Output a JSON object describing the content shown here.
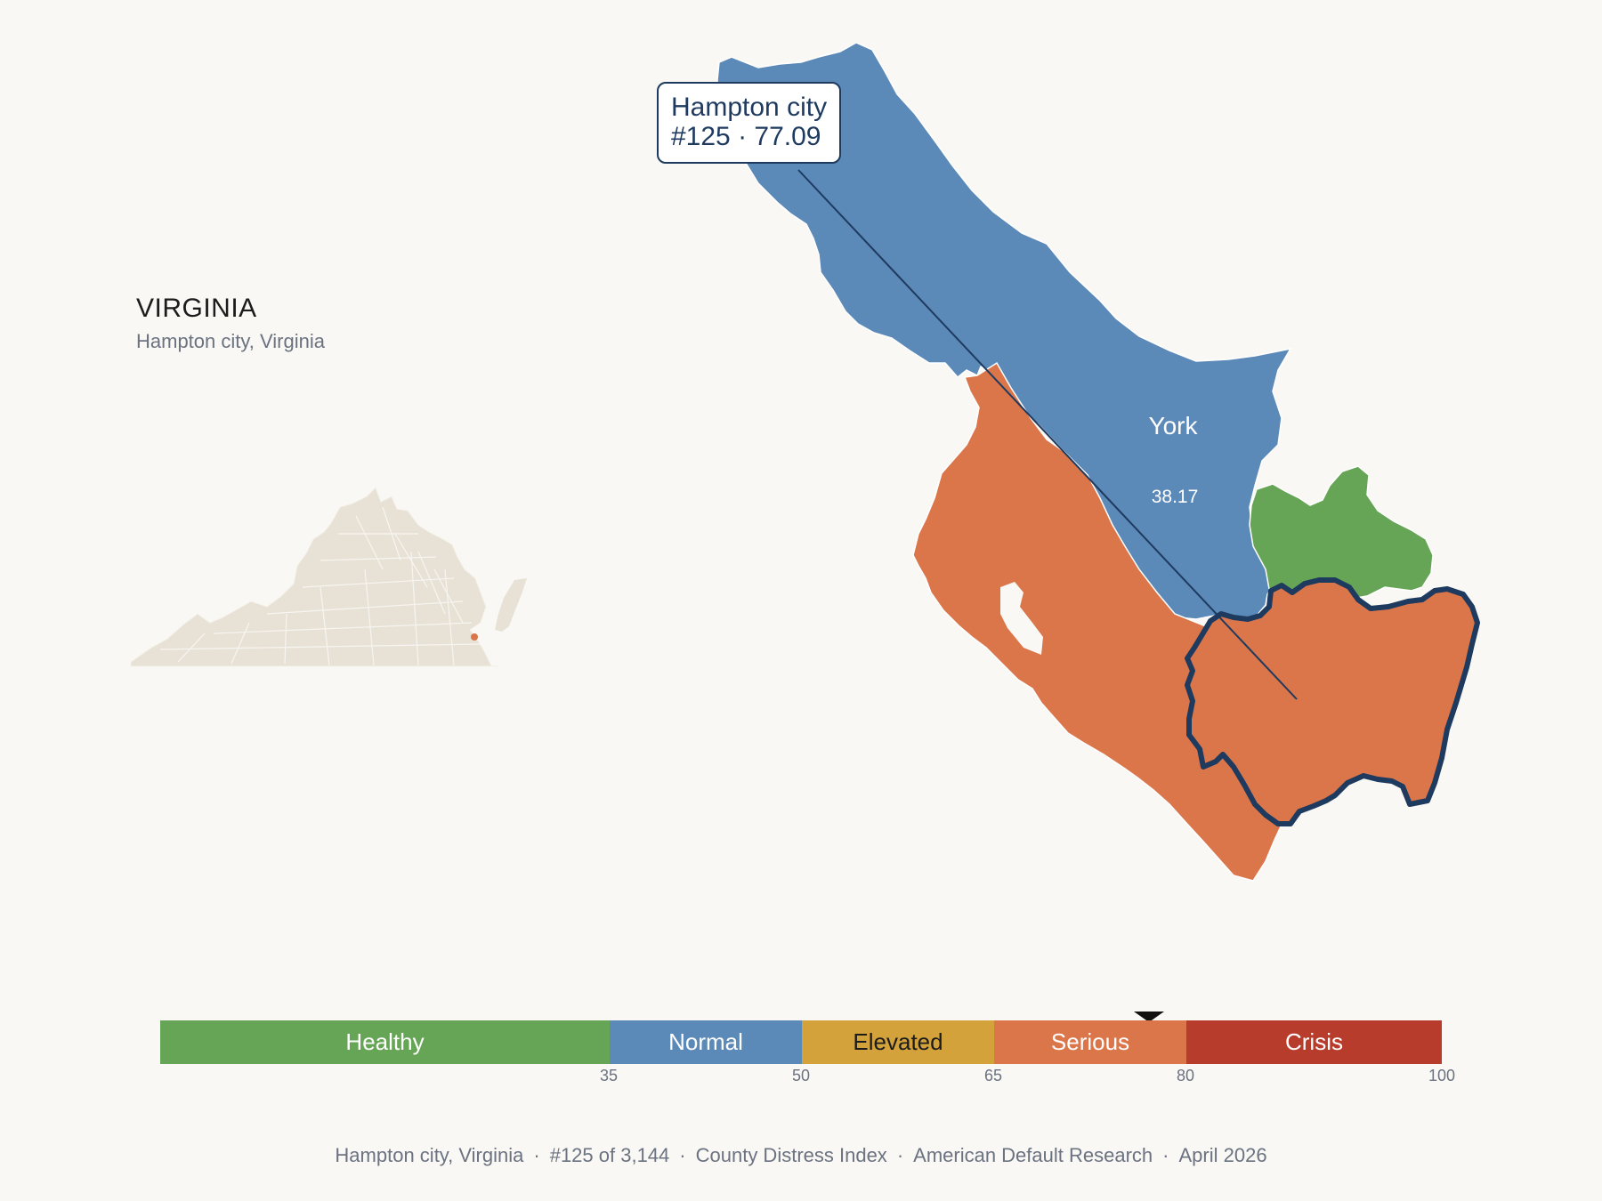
{
  "state": {
    "title": "VIRGINIA",
    "subtitle": "Hampton city, Virginia"
  },
  "callout": {
    "line1": "Hampton city",
    "line2": "#125 · 77.09"
  },
  "counties": [
    {
      "name": "York",
      "score": "38.17",
      "category": "Normal"
    },
    {
      "name": "Hampton city",
      "score": "77.09",
      "rank": "#125",
      "category": "Serious",
      "highlighted": true
    }
  ],
  "colors": {
    "healthy": "#66a556",
    "normal": "#5b89b8",
    "elevated": "#d4a23a",
    "serious": "#db764a",
    "crisis": "#b83c2c",
    "outline": "#1e3a5f",
    "locator_state": "#e8e2d6",
    "background": "#f9f8f5"
  },
  "scale": {
    "segments": [
      {
        "label": "Healthy",
        "from": 0,
        "to": 35,
        "color": "#66a556"
      },
      {
        "label": "Normal",
        "from": 35,
        "to": 50,
        "color": "#5b89b8"
      },
      {
        "label": "Elevated",
        "from": 50,
        "to": 65,
        "color": "#d4a23a"
      },
      {
        "label": "Serious",
        "from": 65,
        "to": 80,
        "color": "#db764a"
      },
      {
        "label": "Crisis",
        "from": 80,
        "to": 100,
        "color": "#b83c2c"
      }
    ],
    "ticks": [
      "35",
      "50",
      "65",
      "80",
      "100"
    ],
    "value": 77.09
  },
  "footer": {
    "place": "Hampton city, Virginia",
    "rank": "#125 of 3,144",
    "index": "County Distress Index",
    "publisher": "American Default Research",
    "date": "April 2026"
  }
}
